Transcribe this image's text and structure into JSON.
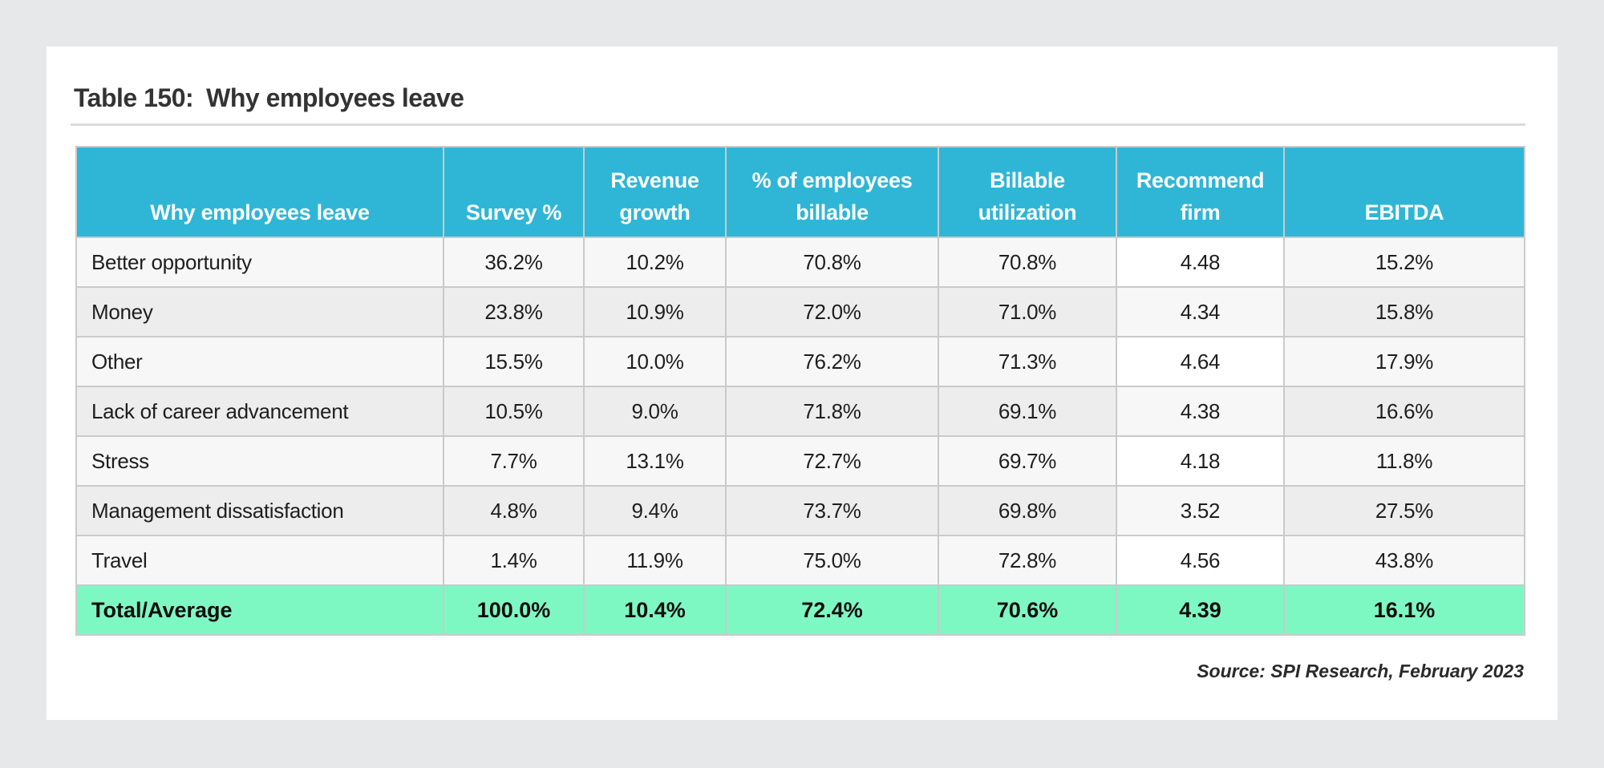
{
  "title": {
    "number": "Table 150:",
    "text": "Why employees leave"
  },
  "table": {
    "headers": [
      "Why employees leave",
      "Survey %",
      "Revenue growth",
      "% of employees billable",
      "Billable utilization",
      "Recommend firm",
      "EBITDA"
    ],
    "rows": [
      [
        "Better opportunity",
        "36.2%",
        "10.2%",
        "70.8%",
        "70.8%",
        "4.48",
        "15.2%"
      ],
      [
        "Money",
        "23.8%",
        "10.9%",
        "72.0%",
        "71.0%",
        "4.34",
        "15.8%"
      ],
      [
        "Other",
        "15.5%",
        "10.0%",
        "76.2%",
        "71.3%",
        "4.64",
        "17.9%"
      ],
      [
        "Lack of career advancement",
        "10.5%",
        "9.0%",
        "71.8%",
        "69.1%",
        "4.38",
        "16.6%"
      ],
      [
        "Stress",
        "7.7%",
        "13.1%",
        "72.7%",
        "69.7%",
        "4.18",
        "11.8%"
      ],
      [
        "Management dissatisfaction",
        "4.8%",
        "9.4%",
        "73.7%",
        "69.8%",
        "3.52",
        "27.5%"
      ],
      [
        "Travel",
        "1.4%",
        "11.9%",
        "75.0%",
        "72.8%",
        "4.56",
        "43.8%"
      ]
    ],
    "total": [
      "Total/Average",
      "100.0%",
      "10.4%",
      "72.4%",
      "70.6%",
      "4.39",
      "16.1%"
    ]
  },
  "source": "Source: SPI Research, February 2023",
  "colors": {
    "header_bg": "#2fb6d6",
    "total_bg": "#7ef8c3",
    "page_bg": "#e7e8ea"
  }
}
